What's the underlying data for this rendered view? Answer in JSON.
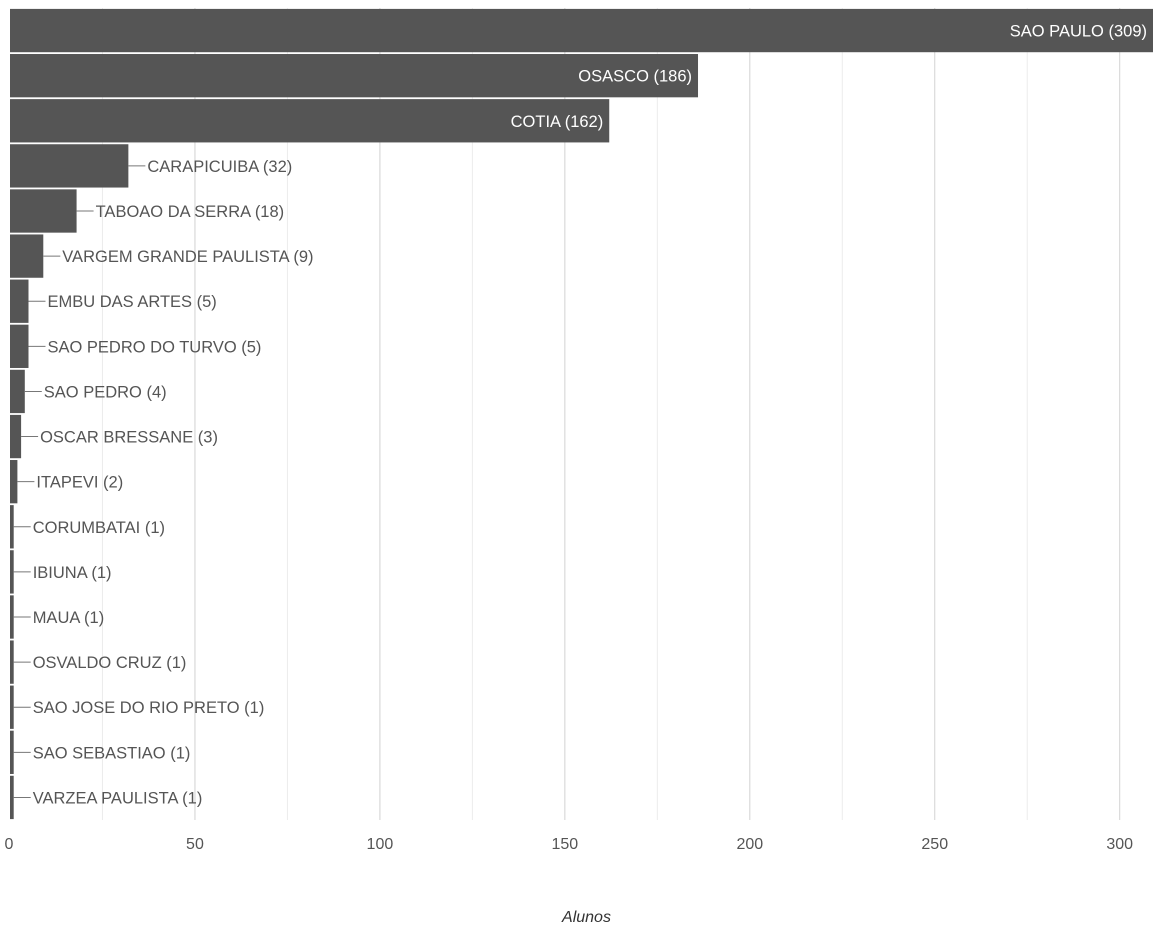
{
  "chart_data": {
    "type": "bar",
    "orientation": "horizontal",
    "xlabel": "Alunos",
    "ylabel": "",
    "xlim": [
      0,
      309
    ],
    "x_ticks": [
      0,
      50,
      100,
      150,
      200,
      250,
      300
    ],
    "x_minor_ticks": [
      25,
      75,
      125,
      175,
      225,
      275
    ],
    "grid": true,
    "legend": "none",
    "bar_color": "#555555",
    "grid_color": "#d9d9d9",
    "categories": [
      "SAO PAULO",
      "OSASCO",
      "COTIA",
      "CARAPICUIBA",
      "TABOAO DA SERRA",
      "VARGEM GRANDE PAULISTA",
      "EMBU DAS ARTES",
      "SAO PEDRO DO TURVO",
      "SAO PEDRO",
      "OSCAR BRESSANE",
      "ITAPEVI",
      "CORUMBATAI",
      "IBIUNA",
      "MAUA",
      "OSVALDO CRUZ",
      "SAO JOSE DO RIO PRETO",
      "SAO SEBASTIAO",
      "VARZEA PAULISTA"
    ],
    "values": [
      309,
      186,
      162,
      32,
      18,
      9,
      5,
      5,
      4,
      3,
      2,
      1,
      1,
      1,
      1,
      1,
      1,
      1
    ],
    "data_labels": [
      "SAO PAULO (309)",
      "OSASCO (186)",
      "COTIA (162)",
      "CARAPICUIBA (32)",
      "TABOAO DA SERRA (18)",
      "VARGEM GRANDE PAULISTA (9)",
      "EMBU DAS ARTES (5)",
      "SAO PEDRO DO TURVO (5)",
      "SAO PEDRO (4)",
      "OSCAR BRESSANE (3)",
      "ITAPEVI (2)",
      "CORUMBATAI (1)",
      "IBIUNA (1)",
      "MAUA (1)",
      "OSVALDO CRUZ (1)",
      "SAO JOSE DO RIO PRETO (1)",
      "SAO SEBASTIAO (1)",
      "VARZEA PAULISTA (1)"
    ]
  }
}
